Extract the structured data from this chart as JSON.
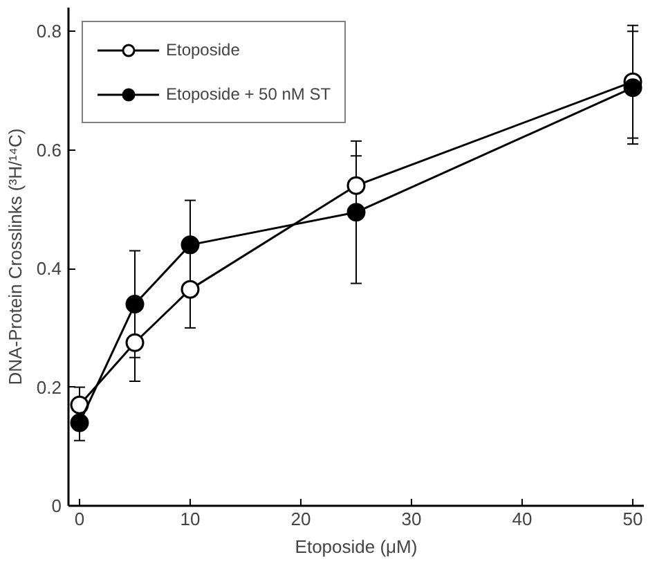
{
  "chart_data": {
    "type": "line",
    "xlabel": "Etoposide (μM)",
    "ylabel": "DNA-Protein Crosslinks (³H/¹⁴C)",
    "x": [
      0,
      5,
      10,
      25,
      50
    ],
    "series": [
      {
        "name": "Etoposide",
        "color": "#ffffff",
        "values": [
          0.17,
          0.275,
          0.365,
          0.54,
          0.715
        ],
        "errors": [
          0.03,
          0.065,
          0.065,
          0.05,
          0.095
        ]
      },
      {
        "name": "Etoposide + 50 nM ST",
        "color": "#000000",
        "values": [
          0.14,
          0.34,
          0.44,
          0.495,
          0.705
        ],
        "errors": [
          0.03,
          0.09,
          0.075,
          0.12,
          0.095
        ]
      }
    ],
    "xlim": [
      -1,
      51
    ],
    "ylim": [
      0,
      0.84
    ],
    "xticks": [
      0,
      10,
      20,
      30,
      40,
      50
    ],
    "yticks": [
      0,
      0.2,
      0.4,
      0.6,
      0.8
    ],
    "grid": false,
    "legend": "top left",
    "marker": "circle",
    "line_style": "solid"
  }
}
